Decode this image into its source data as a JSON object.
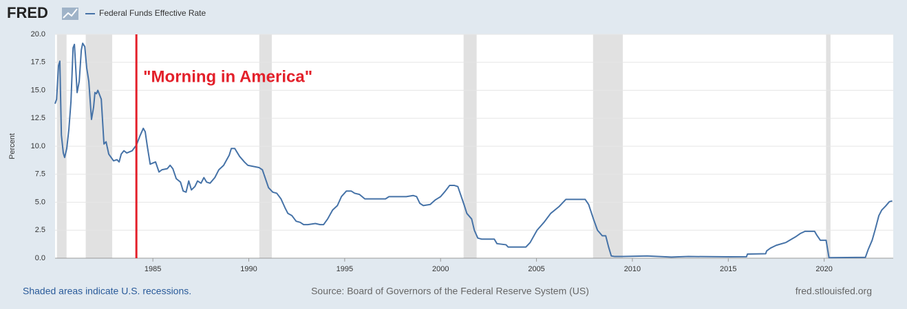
{
  "chart_data": {
    "type": "line",
    "logo": "FRED",
    "y_label": "Percent",
    "footer_left": "Shaded areas indicate U.S. recessions.",
    "footer_center": "Source: Board of Governors of the Federal Reserve System (US)",
    "footer_right": "fred.stlouisfed.org",
    "annotation": {
      "text": "\"Morning in America\"",
      "x": 1984.14,
      "color": "#e3202a"
    },
    "recessions": [
      [
        1980.0,
        1980.5
      ],
      [
        1981.5,
        1982.88
      ],
      [
        1990.55,
        1991.2
      ],
      [
        2001.2,
        2001.88
      ],
      [
        2007.95,
        2009.5
      ],
      [
        2020.1,
        2020.33
      ]
    ],
    "recession_color": "#e1e1e1",
    "xlim": [
      1979.9,
      2023.6
    ],
    "xticks": [
      1985,
      1990,
      1995,
      2000,
      2005,
      2010,
      2015,
      2020
    ],
    "ylim": [
      0,
      20
    ],
    "yticks": [
      {
        "value": 0,
        "label": "0.0"
      },
      {
        "value": 2.5,
        "label": "2.5"
      },
      {
        "value": 5,
        "label": "5.0"
      },
      {
        "value": 7.5,
        "label": "7.5"
      },
      {
        "value": 10,
        "label": "10.0"
      },
      {
        "value": 12.5,
        "label": "12.5"
      },
      {
        "value": 15,
        "label": "15.0"
      },
      {
        "value": 17.5,
        "label": "17.5"
      },
      {
        "value": 20,
        "label": "20.0"
      }
    ],
    "grid": true,
    "x": [
      1979.9,
      1979.98,
      1980.08,
      1980.15,
      1980.23,
      1980.33,
      1980.4,
      1980.51,
      1980.62,
      1980.73,
      1980.84,
      1980.91,
      1981.05,
      1981.16,
      1981.27,
      1981.34,
      1981.45,
      1981.55,
      1981.66,
      1981.8,
      1981.91,
      1981.98,
      1982.06,
      1982.13,
      1982.31,
      1982.45,
      1982.56,
      1982.7,
      1982.95,
      1983.13,
      1983.24,
      1983.35,
      1983.49,
      1983.64,
      1983.78,
      1983.92,
      1984.14,
      1984.32,
      1984.5,
      1984.6,
      1984.71,
      1984.86,
      1985.0,
      1985.14,
      1985.32,
      1985.47,
      1985.75,
      1985.9,
      1986.04,
      1986.22,
      1986.44,
      1986.58,
      1986.73,
      1986.87,
      1987.01,
      1987.19,
      1987.33,
      1987.51,
      1987.66,
      1987.8,
      1987.98,
      1988.23,
      1988.44,
      1988.69,
      1988.98,
      1989.09,
      1989.27,
      1989.52,
      1989.77,
      1989.95,
      1990.24,
      1990.53,
      1990.71,
      1990.89,
      1991.03,
      1991.25,
      1991.46,
      1991.68,
      1991.89,
      1992.04,
      1992.25,
      1992.47,
      1992.68,
      1992.86,
      1993.08,
      1993.47,
      1993.72,
      1993.9,
      1994.11,
      1994.37,
      1994.62,
      1994.83,
      1995.09,
      1995.34,
      1995.52,
      1995.77,
      1996.05,
      1996.41,
      1996.77,
      1997.13,
      1997.31,
      1997.85,
      1998.21,
      1998.57,
      1998.75,
      1998.92,
      1999.1,
      1999.46,
      1999.72,
      2000.0,
      2000.25,
      2000.47,
      2000.72,
      2000.9,
      2001.08,
      2001.22,
      2001.37,
      2001.62,
      2001.76,
      2001.94,
      2002.15,
      2002.8,
      2002.94,
      2003.41,
      2003.52,
      2004.45,
      2004.67,
      2005.03,
      2005.39,
      2005.74,
      2006.17,
      2006.53,
      2007.54,
      2007.72,
      2007.97,
      2008.18,
      2008.43,
      2008.61,
      2008.76,
      2008.9,
      2009.08,
      2009.51,
      2010.77,
      2012.03,
      2012.92,
      2015.08,
      2015.95,
      2016.0,
      2016.95,
      2017.0,
      2017.2,
      2017.5,
      2018.0,
      2018.3,
      2018.5,
      2018.75,
      2019.0,
      2019.5,
      2019.6,
      2019.8,
      2020.1,
      2020.25,
      2022.15,
      2022.3,
      2022.5,
      2022.65,
      2022.85,
      2023.0,
      2023.2,
      2023.4,
      2023.55
    ],
    "series": [
      {
        "name": "Federal Funds Effective Rate",
        "color": "#4572a7",
        "values": [
          13.8,
          14.2,
          17.2,
          17.6,
          11.0,
          9.4,
          9.0,
          9.8,
          11.5,
          14.0,
          18.8,
          19.1,
          14.8,
          15.8,
          18.6,
          19.2,
          18.9,
          17.0,
          15.8,
          12.4,
          13.5,
          14.8,
          14.7,
          15.0,
          14.2,
          10.2,
          10.4,
          9.3,
          8.7,
          8.8,
          8.6,
          9.3,
          9.6,
          9.4,
          9.5,
          9.6,
          10.1,
          10.9,
          11.6,
          11.3,
          10.0,
          8.4,
          8.5,
          8.6,
          7.7,
          7.9,
          8.0,
          8.3,
          8.0,
          7.1,
          6.8,
          6.0,
          5.9,
          6.9,
          6.1,
          6.4,
          6.9,
          6.7,
          7.2,
          6.8,
          6.7,
          7.2,
          7.9,
          8.3,
          9.2,
          9.8,
          9.8,
          9.1,
          8.6,
          8.3,
          8.2,
          8.1,
          7.9,
          7.0,
          6.3,
          5.9,
          5.8,
          5.3,
          4.5,
          4.0,
          3.8,
          3.3,
          3.2,
          3.0,
          3.0,
          3.1,
          3.0,
          3.0,
          3.5,
          4.3,
          4.7,
          5.5,
          6.0,
          6.0,
          5.8,
          5.7,
          5.3,
          5.3,
          5.3,
          5.3,
          5.5,
          5.5,
          5.5,
          5.6,
          5.5,
          4.9,
          4.7,
          4.8,
          5.2,
          5.5,
          6.0,
          6.5,
          6.5,
          6.4,
          5.5,
          4.8,
          4.0,
          3.5,
          2.5,
          1.8,
          1.7,
          1.7,
          1.3,
          1.2,
          1.0,
          1.0,
          1.4,
          2.5,
          3.2,
          4.0,
          4.6,
          5.25,
          5.25,
          4.8,
          3.5,
          2.5,
          2.0,
          2.0,
          1.0,
          0.2,
          0.15,
          0.15,
          0.2,
          0.1,
          0.15,
          0.12,
          0.13,
          0.37,
          0.4,
          0.65,
          0.9,
          1.15,
          1.4,
          1.7,
          1.9,
          2.2,
          2.4,
          2.4,
          2.1,
          1.6,
          1.6,
          0.05,
          0.08,
          0.8,
          1.6,
          2.5,
          3.8,
          4.3,
          4.65,
          5.05,
          5.12
        ]
      }
    ]
  }
}
